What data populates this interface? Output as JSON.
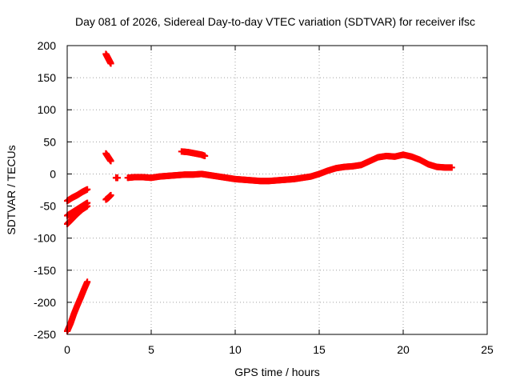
{
  "chart_data": {
    "type": "scatter",
    "title": "Day 081 of 2026, Sidereal Day-to-day VTEC variation (SDTVAR) for receiver ifsc",
    "xlabel": "GPS time / hours",
    "ylabel": "SDTVAR / TECUs",
    "xlim": [
      0,
      25
    ],
    "ylim": [
      -250,
      200
    ],
    "x_ticks": [
      0,
      5,
      10,
      15,
      20,
      25
    ],
    "y_ticks": [
      -250,
      -200,
      -150,
      -100,
      -50,
      0,
      50,
      100,
      150,
      200
    ],
    "grid": true,
    "marker": "+",
    "color": "#ff0000",
    "segments": [
      {
        "x": [
          0.0,
          0.2,
          0.4,
          0.6,
          0.8,
          1.0,
          1.2
        ],
        "y": [
          -245,
          -233,
          -218,
          -205,
          -193,
          -180,
          -168
        ]
      },
      {
        "x": [
          0.0,
          0.3,
          0.6,
          0.9,
          1.2
        ],
        "y": [
          -42,
          -37,
          -33,
          -28,
          -24
        ]
      },
      {
        "x": [
          0.0,
          0.3,
          0.6,
          0.9,
          1.2
        ],
        "y": [
          -65,
          -60,
          -55,
          -50,
          -45
        ]
      },
      {
        "x": [
          0.0,
          0.3,
          0.6,
          0.9,
          1.2
        ],
        "y": [
          -78,
          -70,
          -62,
          -55,
          -50
        ]
      },
      {
        "x": [
          2.3,
          2.4,
          2.5,
          2.6
        ],
        "y": [
          187,
          182,
          177,
          172
        ]
      },
      {
        "x": [
          2.3,
          2.4,
          2.5,
          2.6
        ],
        "y": [
          32,
          28,
          24,
          20
        ]
      },
      {
        "x": [
          2.3,
          2.45,
          2.6
        ],
        "y": [
          -40,
          -37,
          -33
        ]
      },
      {
        "x": [
          2.9,
          3.0
        ],
        "y": [
          -6,
          -6
        ]
      },
      {
        "x": [
          3.6,
          4.0,
          4.5,
          5.0,
          5.5,
          6.0,
          6.5,
          7.0,
          7.5,
          8.0,
          8.5,
          9.0,
          9.5,
          10.0,
          10.5,
          11.0,
          11.5,
          12.0,
          12.5,
          13.0,
          13.5,
          14.0,
          14.5,
          15.0,
          15.5,
          16.0,
          16.5,
          17.0,
          17.5,
          18.0,
          18.5,
          19.0,
          19.5,
          20.0,
          20.5,
          21.0,
          21.5,
          22.0,
          22.5,
          22.9
        ],
        "y": [
          -6,
          -5,
          -5,
          -6,
          -4,
          -3,
          -2,
          -1,
          -1,
          0,
          -2,
          -4,
          -6,
          -8,
          -9,
          -10,
          -11,
          -11,
          -10,
          -9,
          -8,
          -6,
          -4,
          0,
          5,
          9,
          11,
          12,
          14,
          20,
          26,
          28,
          27,
          30,
          27,
          22,
          15,
          11,
          10,
          10
        ]
      },
      {
        "x": [
          6.8,
          7.2,
          7.6,
          8.0,
          8.2
        ],
        "y": [
          35,
          34,
          32,
          30,
          28
        ]
      }
    ]
  }
}
